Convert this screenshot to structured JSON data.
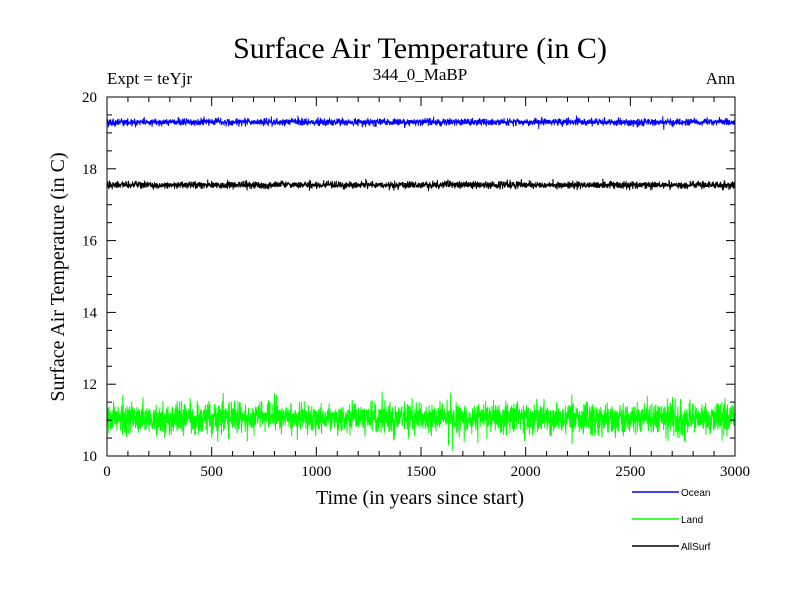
{
  "chart_data": {
    "type": "line",
    "title": "Surface Air Temperature (in C)",
    "subtitle_left": "Expt = teYjr",
    "subtitle_center": "344_0_MaBP",
    "subtitle_right": "Ann",
    "xlabel": "Time (in years since start)",
    "ylabel": "Surface Air Temperature (in C)",
    "xlim": [
      0,
      3000
    ],
    "ylim": [
      10,
      20
    ],
    "x_ticks": [
      0,
      500,
      1000,
      1500,
      2000,
      2500,
      3000
    ],
    "y_ticks": [
      10,
      12,
      14,
      16,
      18,
      20
    ],
    "x_ticks_text": [
      "0",
      "500",
      "1000",
      "1500",
      "2000",
      "2500",
      "3000"
    ],
    "y_ticks_text": [
      "10",
      "12",
      "14",
      "16",
      "18",
      "20"
    ],
    "series": [
      {
        "name": "Ocean",
        "color": "#0000ff",
        "mean": 19.3,
        "noise": 0.05,
        "x_start": 0,
        "x_end": 3000,
        "n_points": 3000
      },
      {
        "name": "Land",
        "color": "#00ff00",
        "mean": 11.05,
        "noise": 0.22,
        "x_start": 0,
        "x_end": 3000,
        "n_points": 3000
      },
      {
        "name": "AllSurf",
        "color": "#000000",
        "mean": 17.55,
        "noise": 0.05,
        "x_start": 0,
        "x_end": 3000,
        "n_points": 3000
      }
    ],
    "legend_position": "bottom-right"
  }
}
